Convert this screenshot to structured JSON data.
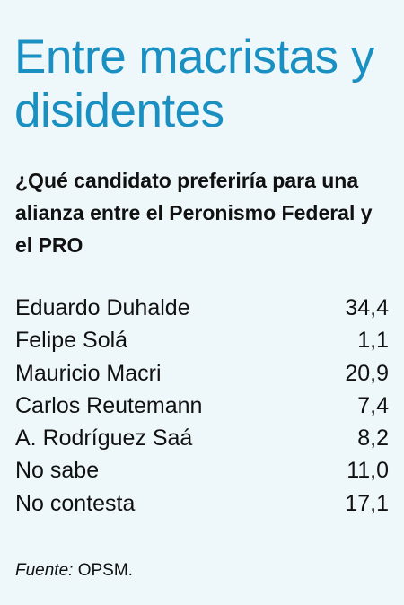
{
  "title": "Entre macristas y disidentes",
  "subtitle": "¿Qué candidato preferiría para una alianza entre el Peronismo Federal y el PRO",
  "chart_data": {
    "type": "table",
    "rows": [
      {
        "label": "Eduardo Duhalde",
        "value": "34,4"
      },
      {
        "label": "Felipe Solá",
        "value": "1,1"
      },
      {
        "label": "Mauricio Macri",
        "value": "20,9"
      },
      {
        "label": "Carlos Reutemann",
        "value": "7,4"
      },
      {
        "label": "A. Rodríguez Saá",
        "value": "8,2"
      },
      {
        "label": "No sabe",
        "value": "11,0"
      },
      {
        "label": "No contesta",
        "value": "17,1"
      }
    ]
  },
  "source": {
    "label": "Fuente:",
    "text": "OPSM."
  },
  "colors": {
    "background": "#eef8fb",
    "title": "#1a8fc2",
    "text": "#111111"
  }
}
